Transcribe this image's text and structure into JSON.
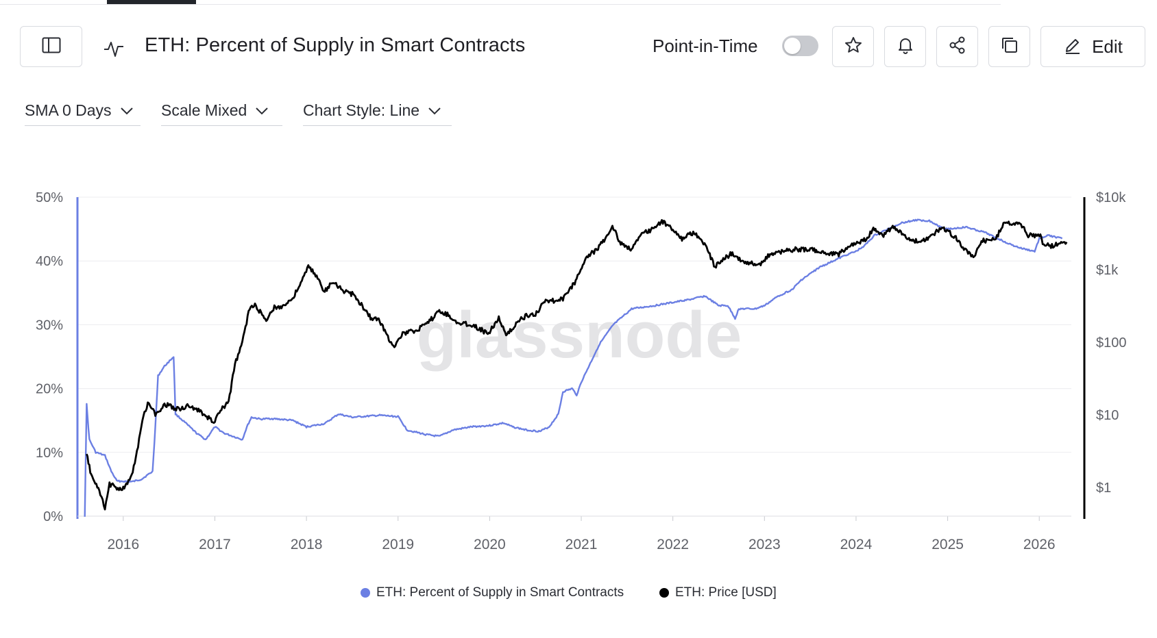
{
  "header": {
    "title": "ETH: Percent of Supply in Smart Contracts",
    "point_in_time_label": "Point-in-Time",
    "point_in_time_enabled": false,
    "edit_label": "Edit",
    "icons": [
      "sidebar-toggle-icon",
      "pulse-icon",
      "star-icon",
      "bell-icon",
      "share-icon",
      "copy-icon",
      "pencil-icon"
    ]
  },
  "controls": {
    "sma": "SMA 0 Days",
    "scale": "Scale Mixed",
    "chart_style": "Chart Style: Line"
  },
  "colors": {
    "supply_series": "#6b7fe3",
    "price_series": "#000000",
    "grid": "#ececef",
    "axis_text": "#5f6168"
  },
  "chart_data": {
    "type": "line",
    "watermark": "glassnode",
    "x_ticks": [
      "2016",
      "2017",
      "2018",
      "2019",
      "2020",
      "2021",
      "2022",
      "2023",
      "2024",
      "2025",
      "2026"
    ],
    "xlim": [
      2015.5,
      2026.35
    ],
    "left_axis": {
      "ticks": [
        "0%",
        "10%",
        "20%",
        "30%",
        "40%",
        "50%"
      ],
      "ylim": [
        0,
        50
      ],
      "unit": "%"
    },
    "right_axis": {
      "ticks": [
        "$1",
        "$10",
        "$100",
        "$1k",
        "$10k"
      ],
      "scale": "log",
      "ylim": [
        0.4,
        10000
      ],
      "unit": "USD"
    },
    "grid": true,
    "legend_position": "bottom",
    "series": [
      {
        "name": "ETH: Percent of Supply in Smart Contracts",
        "axis": "left",
        "color": "#6b7fe3",
        "points": [
          [
            2015.58,
            0
          ],
          [
            2015.6,
            17.5
          ],
          [
            2015.63,
            12
          ],
          [
            2015.7,
            10
          ],
          [
            2015.8,
            9.5
          ],
          [
            2015.87,
            7
          ],
          [
            2015.93,
            5.5
          ],
          [
            2016.1,
            5.4
          ],
          [
            2016.2,
            5.8
          ],
          [
            2016.32,
            7
          ],
          [
            2016.35,
            14
          ],
          [
            2016.38,
            22
          ],
          [
            2016.45,
            23.5
          ],
          [
            2016.55,
            25
          ],
          [
            2016.57,
            16
          ],
          [
            2016.65,
            15
          ],
          [
            2016.8,
            13
          ],
          [
            2016.9,
            12
          ],
          [
            2017.0,
            14
          ],
          [
            2017.1,
            13
          ],
          [
            2017.2,
            12.5
          ],
          [
            2017.3,
            12
          ],
          [
            2017.35,
            14
          ],
          [
            2017.4,
            15.5
          ],
          [
            2017.5,
            15.2
          ],
          [
            2017.6,
            15.3
          ],
          [
            2017.7,
            15.2
          ],
          [
            2017.85,
            15
          ],
          [
            2018.0,
            14
          ],
          [
            2018.2,
            14.5
          ],
          [
            2018.35,
            16
          ],
          [
            2018.5,
            15.5
          ],
          [
            2018.8,
            15.8
          ],
          [
            2019.0,
            15.6
          ],
          [
            2019.1,
            13.5
          ],
          [
            2019.3,
            12.8
          ],
          [
            2019.45,
            12.5
          ],
          [
            2019.6,
            13.5
          ],
          [
            2019.8,
            14
          ],
          [
            2020.0,
            14.2
          ],
          [
            2020.15,
            14.6
          ],
          [
            2020.25,
            14
          ],
          [
            2020.4,
            13.5
          ],
          [
            2020.55,
            13.3
          ],
          [
            2020.65,
            14
          ],
          [
            2020.75,
            16
          ],
          [
            2020.8,
            19.5
          ],
          [
            2020.9,
            20
          ],
          [
            2020.95,
            19
          ],
          [
            2021.0,
            21
          ],
          [
            2021.1,
            24
          ],
          [
            2021.2,
            27
          ],
          [
            2021.35,
            30
          ],
          [
            2021.55,
            32.5
          ],
          [
            2021.8,
            33
          ],
          [
            2022.0,
            33.5
          ],
          [
            2022.2,
            34
          ],
          [
            2022.35,
            34.5
          ],
          [
            2022.5,
            33
          ],
          [
            2022.6,
            33
          ],
          [
            2022.68,
            31
          ],
          [
            2022.72,
            32.5
          ],
          [
            2022.9,
            32.5
          ],
          [
            2023.0,
            33
          ],
          [
            2023.15,
            34.5
          ],
          [
            2023.3,
            35.5
          ],
          [
            2023.4,
            37
          ],
          [
            2023.5,
            38
          ],
          [
            2023.6,
            39
          ],
          [
            2023.75,
            40
          ],
          [
            2023.9,
            41
          ],
          [
            2024.0,
            41.5
          ],
          [
            2024.1,
            42.5
          ],
          [
            2024.2,
            44
          ],
          [
            2024.35,
            45
          ],
          [
            2024.5,
            46
          ],
          [
            2024.65,
            46.4
          ],
          [
            2024.8,
            46.3
          ],
          [
            2024.9,
            45.5
          ],
          [
            2025.0,
            45
          ],
          [
            2025.2,
            45.3
          ],
          [
            2025.4,
            44.5
          ],
          [
            2025.55,
            43.5
          ],
          [
            2025.7,
            42.5
          ],
          [
            2025.8,
            42
          ],
          [
            2025.95,
            41.5
          ],
          [
            2026.0,
            43.5
          ],
          [
            2026.1,
            44
          ],
          [
            2026.25,
            43.5
          ]
        ]
      },
      {
        "name": "ETH: Price [USD]",
        "axis": "right",
        "color": "#000000",
        "points": [
          [
            2015.6,
            2.8
          ],
          [
            2015.65,
            1.5
          ],
          [
            2015.75,
            0.8
          ],
          [
            2015.8,
            0.5
          ],
          [
            2015.85,
            1.1
          ],
          [
            2015.93,
            1.0
          ],
          [
            2016.0,
            0.95
          ],
          [
            2016.08,
            1.3
          ],
          [
            2016.15,
            3
          ],
          [
            2016.22,
            10
          ],
          [
            2016.28,
            15
          ],
          [
            2016.35,
            10
          ],
          [
            2016.45,
            14
          ],
          [
            2016.52,
            13
          ],
          [
            2016.6,
            12
          ],
          [
            2016.7,
            13
          ],
          [
            2016.8,
            12
          ],
          [
            2016.9,
            9.5
          ],
          [
            2017.0,
            8
          ],
          [
            2017.05,
            11
          ],
          [
            2017.15,
            15
          ],
          [
            2017.22,
            50
          ],
          [
            2017.3,
            100
          ],
          [
            2017.38,
            300
          ],
          [
            2017.45,
            320
          ],
          [
            2017.55,
            200
          ],
          [
            2017.65,
            300
          ],
          [
            2017.75,
            320
          ],
          [
            2017.85,
            400
          ],
          [
            2017.95,
            700
          ],
          [
            2018.02,
            1100
          ],
          [
            2018.1,
            850
          ],
          [
            2018.2,
            500
          ],
          [
            2018.3,
            700
          ],
          [
            2018.4,
            500
          ],
          [
            2018.5,
            460
          ],
          [
            2018.6,
            330
          ],
          [
            2018.7,
            220
          ],
          [
            2018.8,
            200
          ],
          [
            2018.9,
            110
          ],
          [
            2018.96,
            90
          ],
          [
            2019.05,
            130
          ],
          [
            2019.15,
            140
          ],
          [
            2019.3,
            170
          ],
          [
            2019.45,
            270
          ],
          [
            2019.55,
            240
          ],
          [
            2019.65,
            180
          ],
          [
            2019.75,
            180
          ],
          [
            2019.85,
            165
          ],
          [
            2019.98,
            130
          ],
          [
            2020.1,
            220
          ],
          [
            2020.18,
            120
          ],
          [
            2020.3,
            190
          ],
          [
            2020.4,
            230
          ],
          [
            2020.5,
            240
          ],
          [
            2020.6,
            380
          ],
          [
            2020.7,
            370
          ],
          [
            2020.8,
            390
          ],
          [
            2020.95,
            730
          ],
          [
            2021.05,
            1500
          ],
          [
            2021.15,
            1800
          ],
          [
            2021.25,
            2500
          ],
          [
            2021.34,
            4000
          ],
          [
            2021.42,
            2400
          ],
          [
            2021.55,
            1900
          ],
          [
            2021.65,
            3000
          ],
          [
            2021.75,
            3500
          ],
          [
            2021.88,
            4600
          ],
          [
            2022.0,
            3700
          ],
          [
            2022.1,
            2700
          ],
          [
            2022.2,
            3200
          ],
          [
            2022.3,
            2800
          ],
          [
            2022.38,
            1800
          ],
          [
            2022.46,
            1100
          ],
          [
            2022.55,
            1400
          ],
          [
            2022.65,
            1700
          ],
          [
            2022.75,
            1300
          ],
          [
            2022.85,
            1250
          ],
          [
            2022.97,
            1200
          ],
          [
            2023.05,
            1600
          ],
          [
            2023.2,
            1800
          ],
          [
            2023.35,
            1900
          ],
          [
            2023.5,
            1900
          ],
          [
            2023.65,
            1700
          ],
          [
            2023.8,
            1600
          ],
          [
            2023.9,
            2000
          ],
          [
            2024.0,
            2300
          ],
          [
            2024.1,
            2600
          ],
          [
            2024.2,
            3700
          ],
          [
            2024.3,
            3000
          ],
          [
            2024.4,
            3800
          ],
          [
            2024.5,
            3200
          ],
          [
            2024.6,
            2500
          ],
          [
            2024.75,
            2500
          ],
          [
            2024.9,
            3500
          ],
          [
            2024.96,
            3700
          ],
          [
            2025.1,
            2700
          ],
          [
            2025.2,
            1800
          ],
          [
            2025.28,
            1500
          ],
          [
            2025.38,
            2500
          ],
          [
            2025.48,
            2600
          ],
          [
            2025.55,
            3000
          ],
          [
            2025.62,
            4600
          ],
          [
            2025.7,
            4300
          ],
          [
            2025.8,
            4200
          ],
          [
            2025.88,
            3000
          ],
          [
            2025.95,
            3000
          ],
          [
            2026.0,
            3100
          ],
          [
            2026.05,
            2200
          ],
          [
            2026.15,
            2100
          ],
          [
            2026.25,
            2400
          ],
          [
            2026.3,
            2400
          ]
        ]
      }
    ]
  },
  "legend": [
    {
      "label": "ETH: Percent of Supply in Smart Contracts",
      "color": "#6b7fe3"
    },
    {
      "label": "ETH: Price [USD]",
      "color": "#000000"
    }
  ]
}
